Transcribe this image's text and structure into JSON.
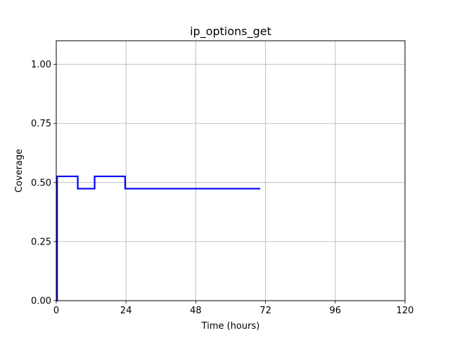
{
  "chart_data": {
    "type": "line",
    "title": "ip_options_get",
    "xlabel": "Time (hours)",
    "ylabel": "Coverage",
    "xlim": [
      0,
      120
    ],
    "ylim": [
      0,
      1.1
    ],
    "xticks": [
      0,
      24,
      48,
      72,
      96,
      120
    ],
    "xtick_labels": [
      "0",
      "24",
      "48",
      "72",
      "96",
      "120"
    ],
    "yticks": [
      0,
      0.25,
      0.5,
      0.75,
      1.0
    ],
    "ytick_labels": [
      "0.00",
      "0.25",
      "0.50",
      "0.75",
      "1.00"
    ],
    "grid": true,
    "line_color": "#0000ff",
    "series": [
      {
        "step": "post",
        "x": [
          0,
          0.3,
          7.4,
          13.2,
          23.7,
          70.2
        ],
        "y": [
          0,
          0.526,
          0.474,
          0.526,
          0.474,
          0.474
        ]
      }
    ]
  }
}
